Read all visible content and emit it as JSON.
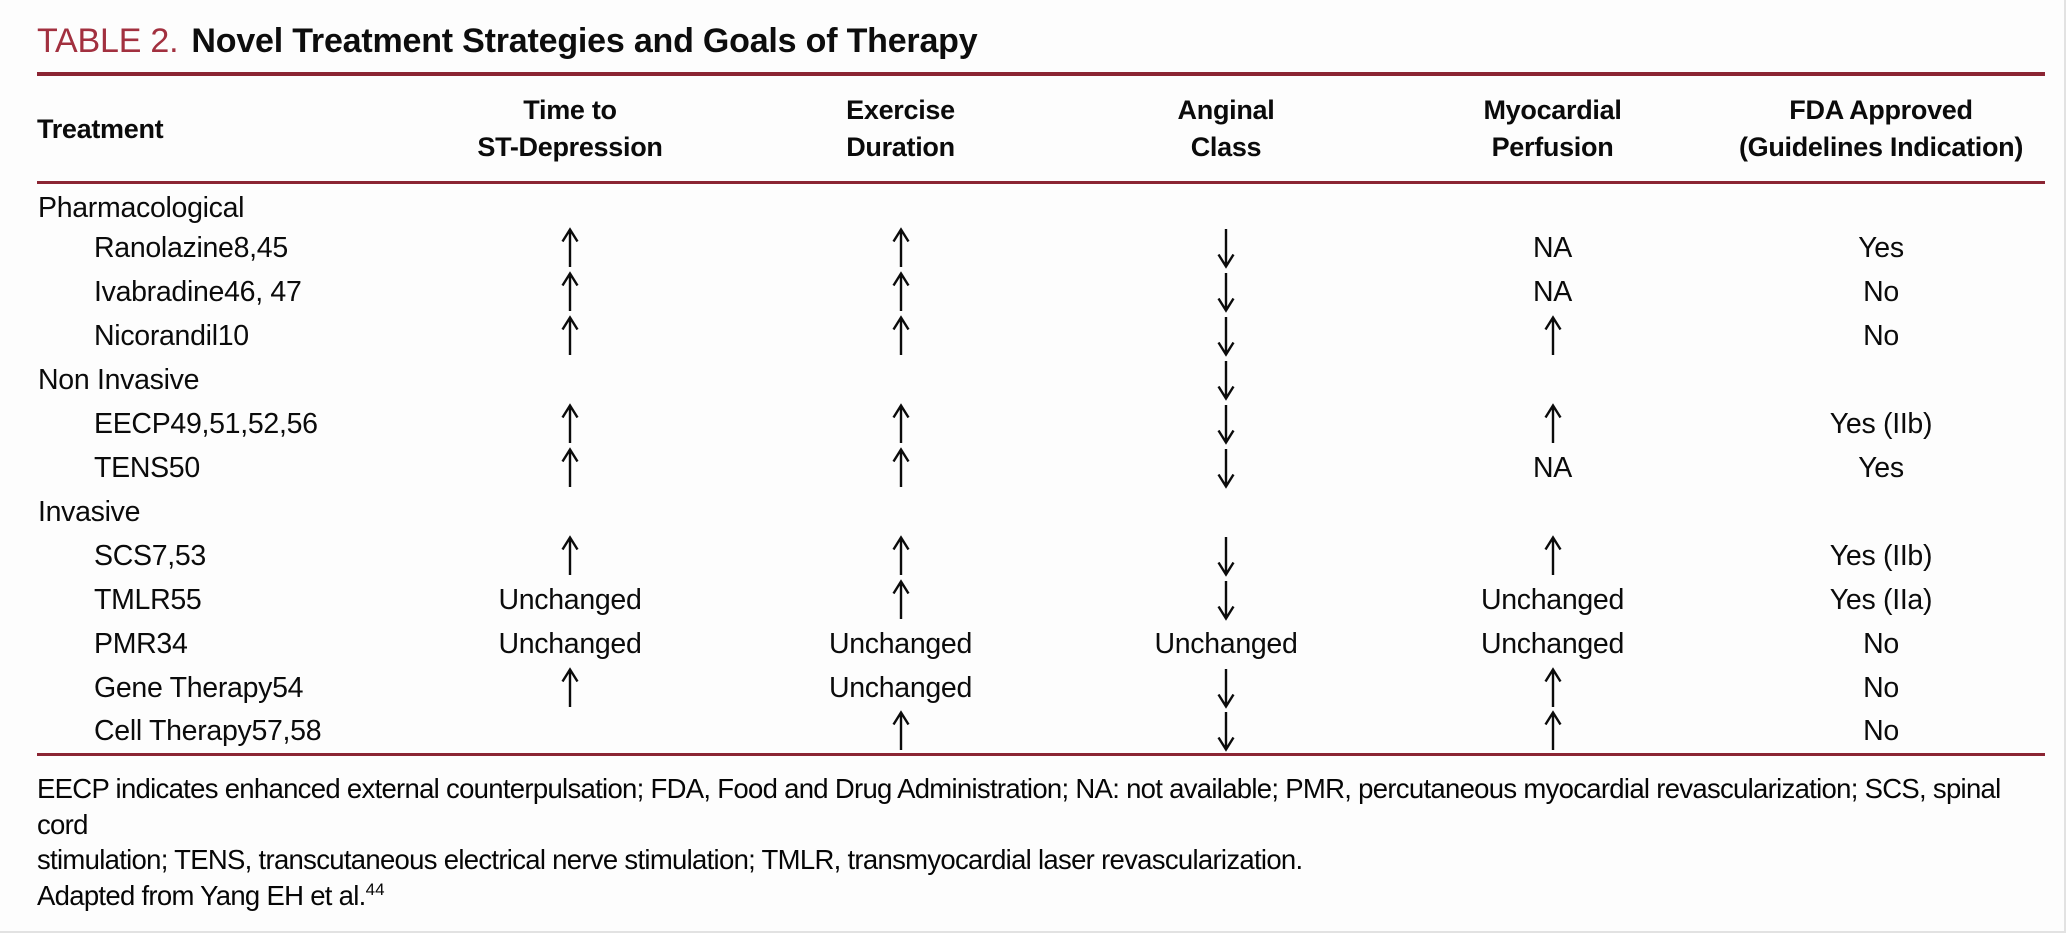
{
  "page": {
    "title_label": "TABLE 2.",
    "title_text": "Novel Treatment Strategies and Goals of Therapy"
  },
  "colors": {
    "rule_maroon": "#8b2533",
    "title_label_red": "#a2303f",
    "text": "#0b0b0b",
    "background": "#fdfdfd"
  },
  "table": {
    "columns": [
      {
        "id": "treatment",
        "label": "Treatment"
      },
      {
        "id": "time_to_st_depression",
        "label": "Time to\nST-Depression"
      },
      {
        "id": "exercise_duration",
        "label": "Exercise\nDuration"
      },
      {
        "id": "anginal_class",
        "label": "Anginal\nClass"
      },
      {
        "id": "myocardial_perfusion",
        "label": "Myocardial\nPerfusion"
      },
      {
        "id": "fda_approved",
        "label": "FDA Approved\n(Guidelines Indication)"
      }
    ],
    "rows": [
      {
        "type": "section",
        "treatment": "Pharmacological",
        "cells": [
          "",
          "",
          "",
          "",
          ""
        ]
      },
      {
        "type": "item",
        "treatment": "Ranolazine8,45",
        "cells": [
          "↑",
          "↑",
          "↓",
          "NA",
          "Yes"
        ]
      },
      {
        "type": "item",
        "treatment": "Ivabradine46, 47",
        "cells": [
          "↑",
          "↑",
          "↓",
          "NA",
          "No"
        ]
      },
      {
        "type": "item",
        "treatment": "Nicorandil10",
        "cells": [
          "↑",
          "↑",
          "↓",
          "↑",
          "No"
        ]
      },
      {
        "type": "section",
        "treatment": "Non Invasive",
        "cells": [
          "",
          "",
          "↓",
          "",
          ""
        ]
      },
      {
        "type": "item",
        "treatment": "EECP49,51,52,56",
        "cells": [
          "↑",
          "↑",
          "↓",
          "↑",
          "Yes (IIb)"
        ]
      },
      {
        "type": "item",
        "treatment": "TENS50",
        "cells": [
          "↑",
          "↑",
          "↓",
          "NA",
          "Yes"
        ]
      },
      {
        "type": "section",
        "treatment": "Invasive",
        "cells": [
          "",
          "",
          "",
          "",
          ""
        ]
      },
      {
        "type": "item",
        "treatment": "SCS7,53",
        "cells": [
          "↑",
          "↑",
          "↓",
          "↑",
          "Yes (IIb)"
        ]
      },
      {
        "type": "item",
        "treatment": "TMLR55",
        "cells": [
          "Unchanged",
          "↑",
          "↓",
          "Unchanged",
          "Yes (IIa)"
        ]
      },
      {
        "type": "item",
        "treatment": "PMR34",
        "cells": [
          "Unchanged",
          "Unchanged",
          "Unchanged",
          "Unchanged",
          "No"
        ]
      },
      {
        "type": "item",
        "treatment": "Gene Therapy54",
        "cells": [
          "↑",
          "Unchanged",
          "↓",
          "↑",
          "No"
        ]
      },
      {
        "type": "item",
        "treatment": "Cell Therapy57,58",
        "cells": [
          "",
          "↑",
          "↓",
          "↑",
          "No"
        ]
      }
    ]
  },
  "footnote": {
    "abbreviations": "EECP indicates enhanced external counterpulsation; FDA, Food and Drug Administration; NA: not available; PMR, percutaneous myocardial revascularization; SCS, spinal cord\nstimulation; TENS, transcutaneous electrical nerve stimulation; TMLR, transmyocardial laser revascularization.",
    "adapted_text": "Adapted from Yang EH et al.",
    "adapted_ref": "44"
  }
}
